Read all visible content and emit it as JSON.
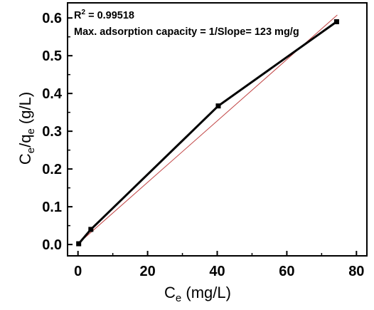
{
  "chart_data": {
    "type": "line",
    "title": "",
    "xlabel": {
      "main": "C",
      "sub": "e",
      "unit": " (mg/L)"
    },
    "ylabel": {
      "a": "C",
      "a_sub": "e",
      "slash": "/q",
      "b_sub": "e",
      "unit": " (g/L)"
    },
    "xlim": [
      -3,
      83
    ],
    "ylim": [
      -0.03,
      0.64
    ],
    "xticks": [
      0,
      20,
      40,
      60,
      80
    ],
    "yticks": [
      0.0,
      0.1,
      0.2,
      0.3,
      0.4,
      0.5,
      0.6
    ],
    "ytick_labels": [
      "0.0",
      "0.1",
      "0.2",
      "0.3",
      "0.4",
      "0.5",
      "0.6"
    ],
    "series": [
      {
        "type": "line+markers",
        "color": "#000000",
        "marker": "square",
        "x": [
          0.2,
          3.7,
          40.3,
          74.3
        ],
        "y": [
          0.002,
          0.04,
          0.367,
          0.59
        ]
      },
      {
        "type": "fit",
        "color": "#c04040",
        "x": [
          0.0,
          74.5
        ],
        "y": [
          0.002,
          0.608
        ]
      }
    ],
    "annotations": {
      "r2_prefix": "R",
      "r2_sup": "2",
      "r2_value": " = 0.99518",
      "capacity": "Max. adsorption capacity = 1/Slope= 123  mg/g"
    },
    "grid": false,
    "legend": "none"
  }
}
